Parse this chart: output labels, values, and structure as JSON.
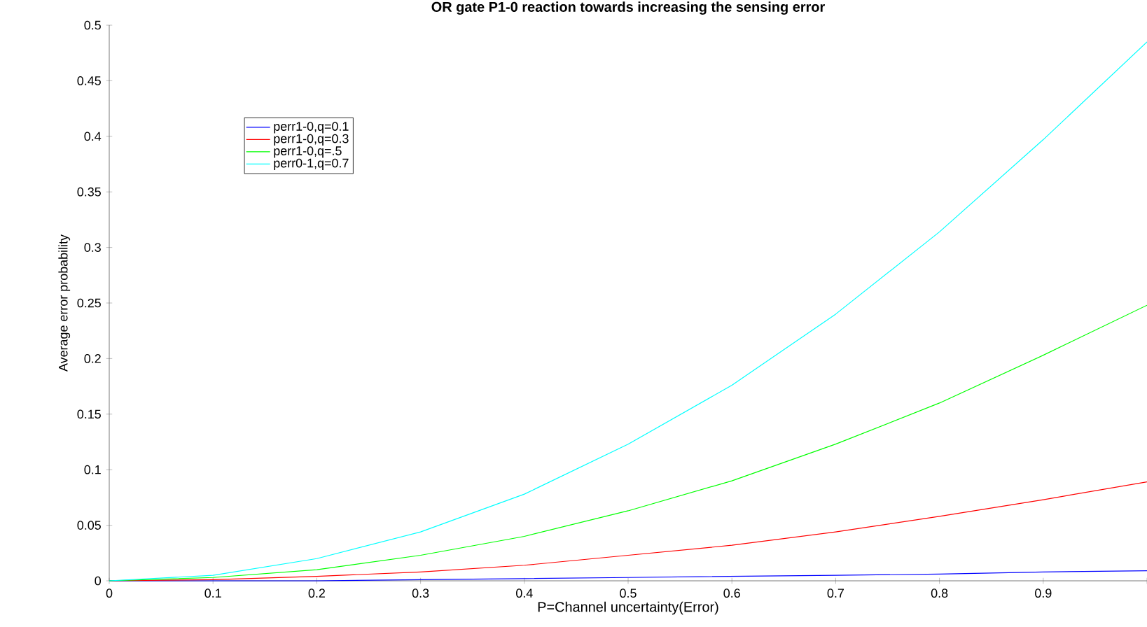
{
  "chart_data": {
    "type": "line",
    "title": "OR gate P1-0 reaction towards increasing the sensing error",
    "xlabel": "P=Channel uncertainty(Error)",
    "ylabel": "Average error probability",
    "x": [
      0,
      0.1,
      0.2,
      0.3,
      0.4,
      0.5,
      0.6,
      0.7,
      0.8,
      0.9,
      1
    ],
    "series": [
      {
        "name": "perr1-0,q=0.1",
        "color": "#0000ff",
        "values": [
          0,
          0,
          0,
          0.001,
          0.002,
          0.003,
          0.004,
          0.005,
          0.006,
          0.008,
          0.009
        ]
      },
      {
        "name": "perr1-0,q=0.3",
        "color": "#ff0000",
        "values": [
          0,
          0.001,
          0.004,
          0.008,
          0.014,
          0.023,
          0.032,
          0.044,
          0.058,
          0.073,
          0.089
        ]
      },
      {
        "name": "perr1-0,q=.5",
        "color": "#00ff00",
        "values": [
          0,
          0.003,
          0.01,
          0.023,
          0.04,
          0.063,
          0.09,
          0.123,
          0.16,
          0.203,
          0.248
        ]
      },
      {
        "name": "perr0-1,q=0.7",
        "color": "#00ffff",
        "values": [
          0,
          0.005,
          0.02,
          0.044,
          0.078,
          0.123,
          0.176,
          0.24,
          0.314,
          0.397,
          0.485
        ]
      }
    ],
    "xlim": [
      0,
      1
    ],
    "ylim": [
      0,
      0.5
    ],
    "xticks": [
      0,
      0.1,
      0.2,
      0.3,
      0.4,
      0.5,
      0.6,
      0.7,
      0.8,
      0.9,
      {
        "value": 1,
        "label": null
      }
    ],
    "yticks": [
      0,
      0.05,
      0.1,
      0.15,
      0.2,
      0.25,
      0.3,
      0.35,
      0.4,
      0.45,
      0.5
    ],
    "legend": "top left",
    "grid": false,
    "marker": "none",
    "line_style": "solid"
  }
}
